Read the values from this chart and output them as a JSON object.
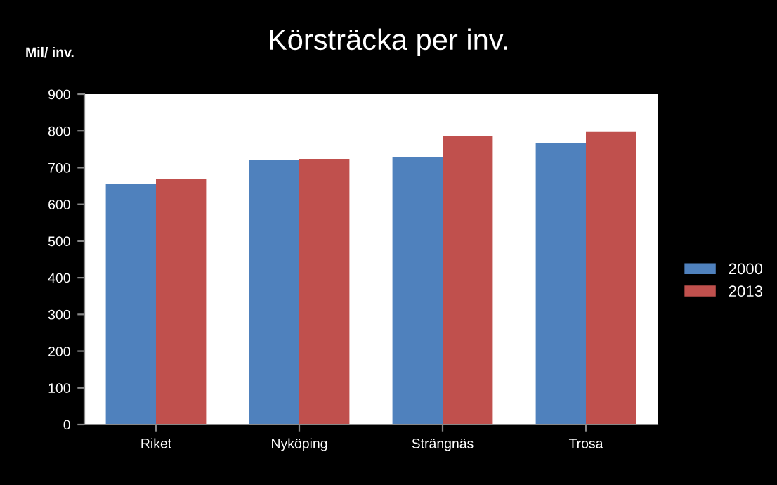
{
  "chart_data": {
    "type": "bar",
    "title": "Körsträcka per inv.",
    "ylabel": "Mil/ inv.",
    "categories": [
      "Riket",
      "Nyköping",
      "Strängnäs",
      "Trosa"
    ],
    "series": [
      {
        "name": "2000",
        "color": "#4f81bd",
        "values": [
          655,
          720,
          728,
          766
        ]
      },
      {
        "name": "2013",
        "color": "#c0504d",
        "values": [
          670,
          724,
          785,
          797
        ]
      }
    ],
    "ylim": [
      0,
      900
    ],
    "yticks": [
      0,
      100,
      200,
      300,
      400,
      500,
      600,
      700,
      800,
      900
    ],
    "grid": false,
    "legend": "right"
  }
}
